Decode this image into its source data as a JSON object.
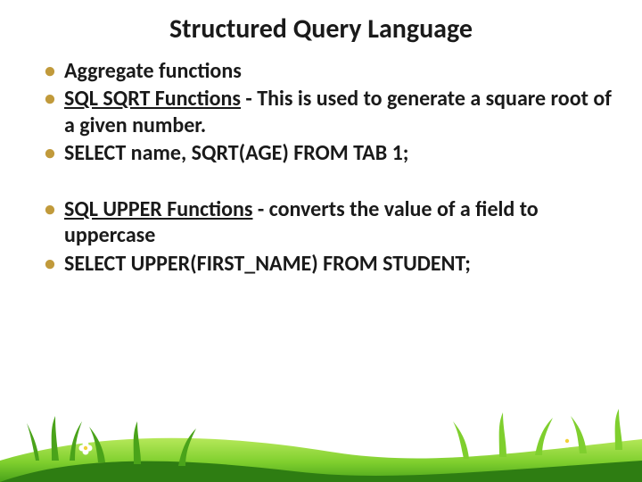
{
  "title": {
    "text": "Structured Query Language",
    "color": "#1a1a1a",
    "fontsize": 30
  },
  "bullets": {
    "marker_color": "#c19a3b",
    "text_color": "#1a1a1a",
    "fontsize": 24,
    "items": [
      {
        "underline": "",
        "plain": "Aggregate functions"
      },
      {
        "underline": "SQL SQRT Functions",
        "plain": " - This is used to generate a square root of a given number."
      },
      {
        "underline": "",
        "plain": "SELECT name, SQRT(AGE) FROM TAB 1;"
      }
    ],
    "items2": [
      {
        "underline": "SQL UPPER Functions",
        "plain": " - converts the value of a field to uppercase"
      },
      {
        "underline": "",
        "plain": "SELECT UPPER(FIRST_NAME) FROM STUDENT;"
      }
    ]
  },
  "grass": {
    "light": "#b6e85a",
    "mid": "#7fcf2e",
    "dark": "#4aa31a",
    "deep": "#2e7d12",
    "flower_petal": "#ffffff",
    "flower_center": "#f2d23a"
  }
}
